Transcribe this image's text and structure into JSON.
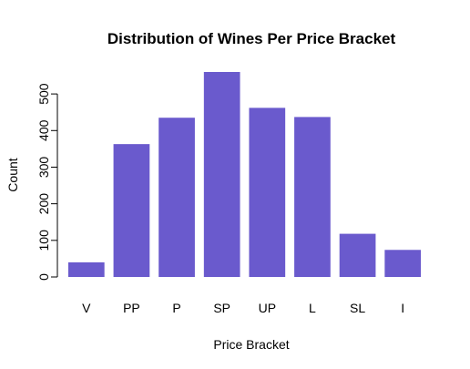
{
  "chart_data": {
    "type": "bar",
    "title": "Distribution of Wines Per Price Bracket",
    "xlabel": "Price Bracket",
    "ylabel": "Count",
    "categories": [
      "V",
      "PP",
      "P",
      "SP",
      "UP",
      "L",
      "SL",
      "I"
    ],
    "values": [
      40,
      363,
      435,
      560,
      462,
      437,
      118,
      74
    ],
    "ylim": [
      0,
      560
    ],
    "yticks": [
      0,
      100,
      200,
      300,
      400,
      500
    ],
    "grid": false,
    "legend": "none",
    "bar_color": "#6A5ACD"
  }
}
